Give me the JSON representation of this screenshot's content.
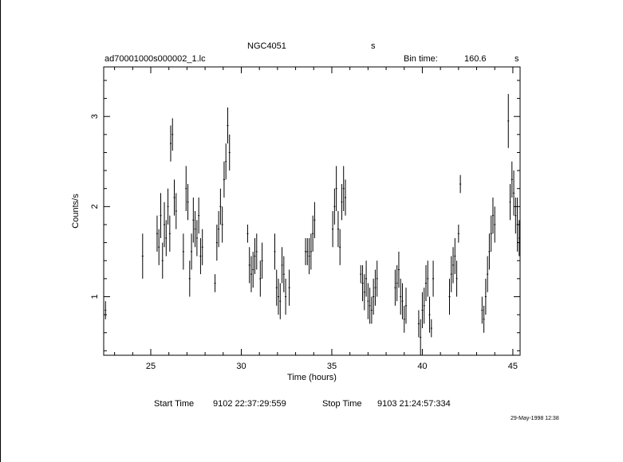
{
  "header": {
    "source": "NGC4051",
    "band": "s",
    "file": "ad70001000s000002_1.lc",
    "bin_label": "Bin time:",
    "bin_value": "160.6",
    "bin_unit": "s"
  },
  "footer": {
    "start_label": "Start Time",
    "start_value": "9102 22:37:29:559",
    "stop_label": "Stop Time",
    "stop_value": "9103 21:24:57:334",
    "date_stamp": "29-May-1998 12:38"
  },
  "chart_data": {
    "type": "scatter",
    "title": "NGC4051",
    "xlabel": "Time (hours)",
    "ylabel": "Counts/s",
    "xlim": [
      22.4,
      45.4
    ],
    "ylim": [
      0.35,
      3.55
    ],
    "xticks": [
      25,
      30,
      35,
      40,
      45
    ],
    "yticks": [
      1,
      2,
      3
    ],
    "grid": false,
    "error_bars": true,
    "points": [
      [
        22.5,
        0.85,
        0.1
      ],
      [
        24.55,
        1.45,
        0.25
      ],
      [
        25.35,
        1.7,
        0.2
      ],
      [
        25.45,
        1.55,
        0.2
      ],
      [
        25.55,
        1.9,
        0.25
      ],
      [
        25.65,
        1.4,
        0.2
      ],
      [
        25.75,
        1.8,
        0.25
      ],
      [
        25.85,
        1.65,
        0.2
      ],
      [
        25.95,
        2.0,
        0.2
      ],
      [
        26.05,
        1.7,
        0.2
      ],
      [
        26.1,
        2.7,
        0.2
      ],
      [
        26.2,
        2.8,
        0.18
      ],
      [
        26.3,
        2.1,
        0.2
      ],
      [
        26.4,
        1.95,
        0.2
      ],
      [
        26.8,
        1.5,
        0.2
      ],
      [
        26.95,
        2.2,
        0.25
      ],
      [
        27.05,
        2.05,
        0.2
      ],
      [
        27.15,
        1.2,
        0.2
      ],
      [
        27.25,
        1.5,
        0.2
      ],
      [
        27.35,
        1.85,
        0.25
      ],
      [
        27.45,
        1.75,
        0.2
      ],
      [
        27.55,
        1.65,
        0.2
      ],
      [
        27.65,
        1.9,
        0.2
      ],
      [
        27.75,
        1.45,
        0.2
      ],
      [
        27.85,
        1.55,
        0.2
      ],
      [
        28.55,
        1.15,
        0.1
      ],
      [
        28.65,
        1.6,
        0.2
      ],
      [
        28.75,
        1.75,
        0.2
      ],
      [
        28.85,
        2.0,
        0.2
      ],
      [
        28.95,
        1.8,
        0.2
      ],
      [
        29.05,
        2.3,
        0.2
      ],
      [
        29.15,
        2.5,
        0.2
      ],
      [
        29.25,
        2.9,
        0.2
      ],
      [
        29.35,
        2.6,
        0.2
      ],
      [
        30.35,
        1.7,
        0.1
      ],
      [
        30.45,
        1.35,
        0.2
      ],
      [
        30.55,
        1.25,
        0.2
      ],
      [
        30.65,
        1.3,
        0.2
      ],
      [
        30.75,
        1.45,
        0.2
      ],
      [
        30.85,
        1.5,
        0.2
      ],
      [
        31.05,
        1.2,
        0.2
      ],
      [
        31.15,
        1.4,
        0.2
      ],
      [
        31.85,
        1.5,
        0.2
      ],
      [
        31.95,
        1.1,
        0.2
      ],
      [
        32.05,
        1.0,
        0.2
      ],
      [
        32.15,
        0.95,
        0.2
      ],
      [
        32.25,
        1.35,
        0.2
      ],
      [
        32.35,
        1.25,
        0.2
      ],
      [
        32.45,
        1.0,
        0.2
      ],
      [
        32.65,
        1.1,
        0.2
      ],
      [
        33.55,
        1.5,
        0.15
      ],
      [
        33.65,
        1.5,
        0.15
      ],
      [
        33.75,
        1.45,
        0.2
      ],
      [
        33.85,
        1.5,
        0.2
      ],
      [
        33.95,
        1.7,
        0.2
      ],
      [
        34.05,
        1.85,
        0.2
      ],
      [
        35.05,
        1.75,
        0.2
      ],
      [
        35.15,
        2.0,
        0.2
      ],
      [
        35.25,
        2.2,
        0.25
      ],
      [
        35.35,
        1.75,
        0.2
      ],
      [
        35.45,
        1.55,
        0.2
      ],
      [
        35.55,
        2.05,
        0.2
      ],
      [
        35.65,
        2.2,
        0.25
      ],
      [
        35.75,
        2.1,
        0.2
      ],
      [
        36.6,
        1.25,
        0.1
      ],
      [
        36.7,
        1.15,
        0.2
      ],
      [
        36.8,
        1.05,
        0.2
      ],
      [
        36.9,
        1.2,
        0.2
      ],
      [
        37.0,
        0.95,
        0.2
      ],
      [
        37.1,
        0.9,
        0.2
      ],
      [
        37.2,
        0.85,
        0.15
      ],
      [
        37.3,
        1.0,
        0.2
      ],
      [
        37.4,
        1.1,
        0.2
      ],
      [
        37.5,
        1.2,
        0.2
      ],
      [
        38.5,
        1.1,
        0.2
      ],
      [
        38.6,
        1.15,
        0.2
      ],
      [
        38.7,
        1.3,
        0.2
      ],
      [
        38.8,
        1.0,
        0.2
      ],
      [
        38.9,
        0.95,
        0.2
      ],
      [
        39.0,
        0.75,
        0.15
      ],
      [
        39.1,
        0.9,
        0.2
      ],
      [
        39.8,
        0.7,
        0.15
      ],
      [
        39.9,
        0.55,
        0.2
      ],
      [
        40.0,
        0.85,
        0.2
      ],
      [
        40.1,
        0.9,
        0.2
      ],
      [
        40.2,
        1.15,
        0.2
      ],
      [
        40.3,
        1.2,
        0.2
      ],
      [
        40.4,
        0.8,
        0.2
      ],
      [
        40.5,
        0.65,
        0.1
      ],
      [
        40.6,
        1.2,
        0.2
      ],
      [
        41.5,
        1.0,
        0.2
      ],
      [
        41.6,
        1.25,
        0.2
      ],
      [
        41.7,
        1.35,
        0.2
      ],
      [
        41.8,
        1.45,
        0.2
      ],
      [
        41.9,
        1.2,
        0.2
      ],
      [
        42.0,
        1.7,
        0.1
      ],
      [
        42.1,
        2.25,
        0.1
      ],
      [
        43.3,
        0.85,
        0.15
      ],
      [
        43.4,
        0.75,
        0.15
      ],
      [
        43.5,
        1.0,
        0.2
      ],
      [
        43.6,
        1.25,
        0.2
      ],
      [
        43.7,
        1.5,
        0.2
      ],
      [
        43.8,
        1.7,
        0.2
      ],
      [
        43.9,
        1.9,
        0.2
      ],
      [
        44.0,
        1.8,
        0.2
      ],
      [
        44.75,
        2.95,
        0.3
      ],
      [
        44.85,
        2.05,
        0.2
      ],
      [
        44.95,
        2.3,
        0.2
      ],
      [
        45.05,
        2.15,
        0.25
      ],
      [
        45.15,
        1.9,
        0.2
      ],
      [
        45.25,
        1.8,
        0.3
      ],
      [
        45.35,
        1.65,
        0.2
      ]
    ]
  }
}
